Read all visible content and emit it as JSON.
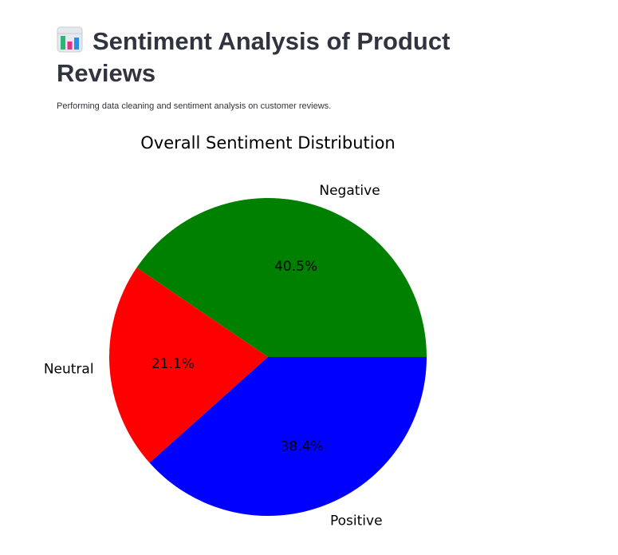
{
  "page": {
    "title": "Sentiment Analysis of Product Reviews",
    "title_icon": "bar-chart-icon",
    "subtitle": "Performing data cleaning and sentiment analysis on customer reviews."
  },
  "chart_data": {
    "type": "pie",
    "title": "Overall Sentiment Distribution",
    "categories": [
      "Negative",
      "Neutral",
      "Positive"
    ],
    "values": [
      40.5,
      21.1,
      38.4
    ],
    "value_labels": [
      "40.5%",
      "21.1%",
      "38.4%"
    ],
    "colors": [
      "#008000",
      "#ff0000",
      "#0000ff"
    ],
    "start_angle_deg": 0,
    "direction": "counterclockwise",
    "legend": "none"
  }
}
